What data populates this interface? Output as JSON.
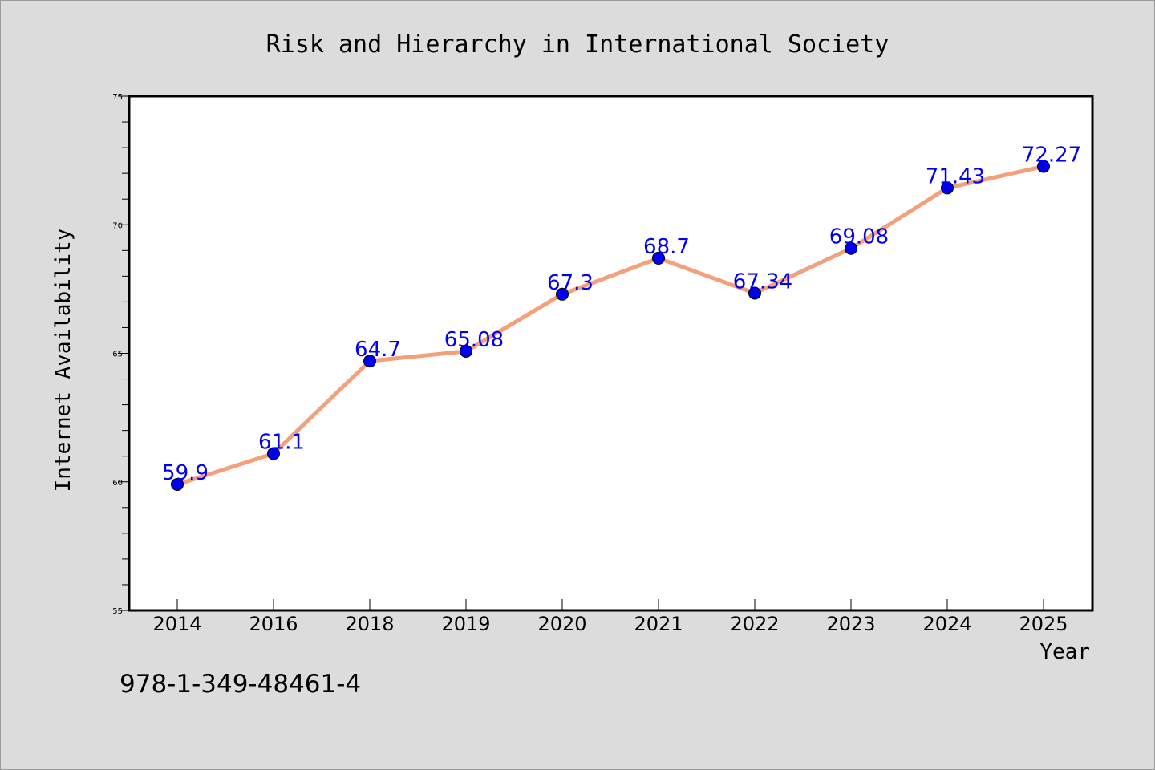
{
  "chart_data": {
    "type": "line",
    "title": "Risk and Hierarchy in International Society",
    "xlabel": "Year",
    "ylabel": "Internet Availability",
    "categories": [
      "2014",
      "2016",
      "2018",
      "2019",
      "2020",
      "2021",
      "2022",
      "2023",
      "2024",
      "2025"
    ],
    "series": [
      {
        "values": [
          59.9,
          61.1,
          64.7,
          65.08,
          67.3,
          68.7,
          67.34,
          69.08,
          71.43,
          72.27
        ],
        "labels": [
          "59.9",
          "61.1",
          "64.7",
          "65.08",
          "67.3",
          "68.7",
          "67.34",
          "69.08",
          "71.43",
          "72.27"
        ],
        "line_color": "#f4a07c",
        "marker_color": "#0000ee"
      }
    ],
    "ylim": [
      55,
      75
    ],
    "yticks": [
      "55",
      "60",
      "65",
      "70",
      "75"
    ],
    "grid": false,
    "legend": "none"
  },
  "footer": {
    "isbn": "978-1-349-48461-4"
  }
}
